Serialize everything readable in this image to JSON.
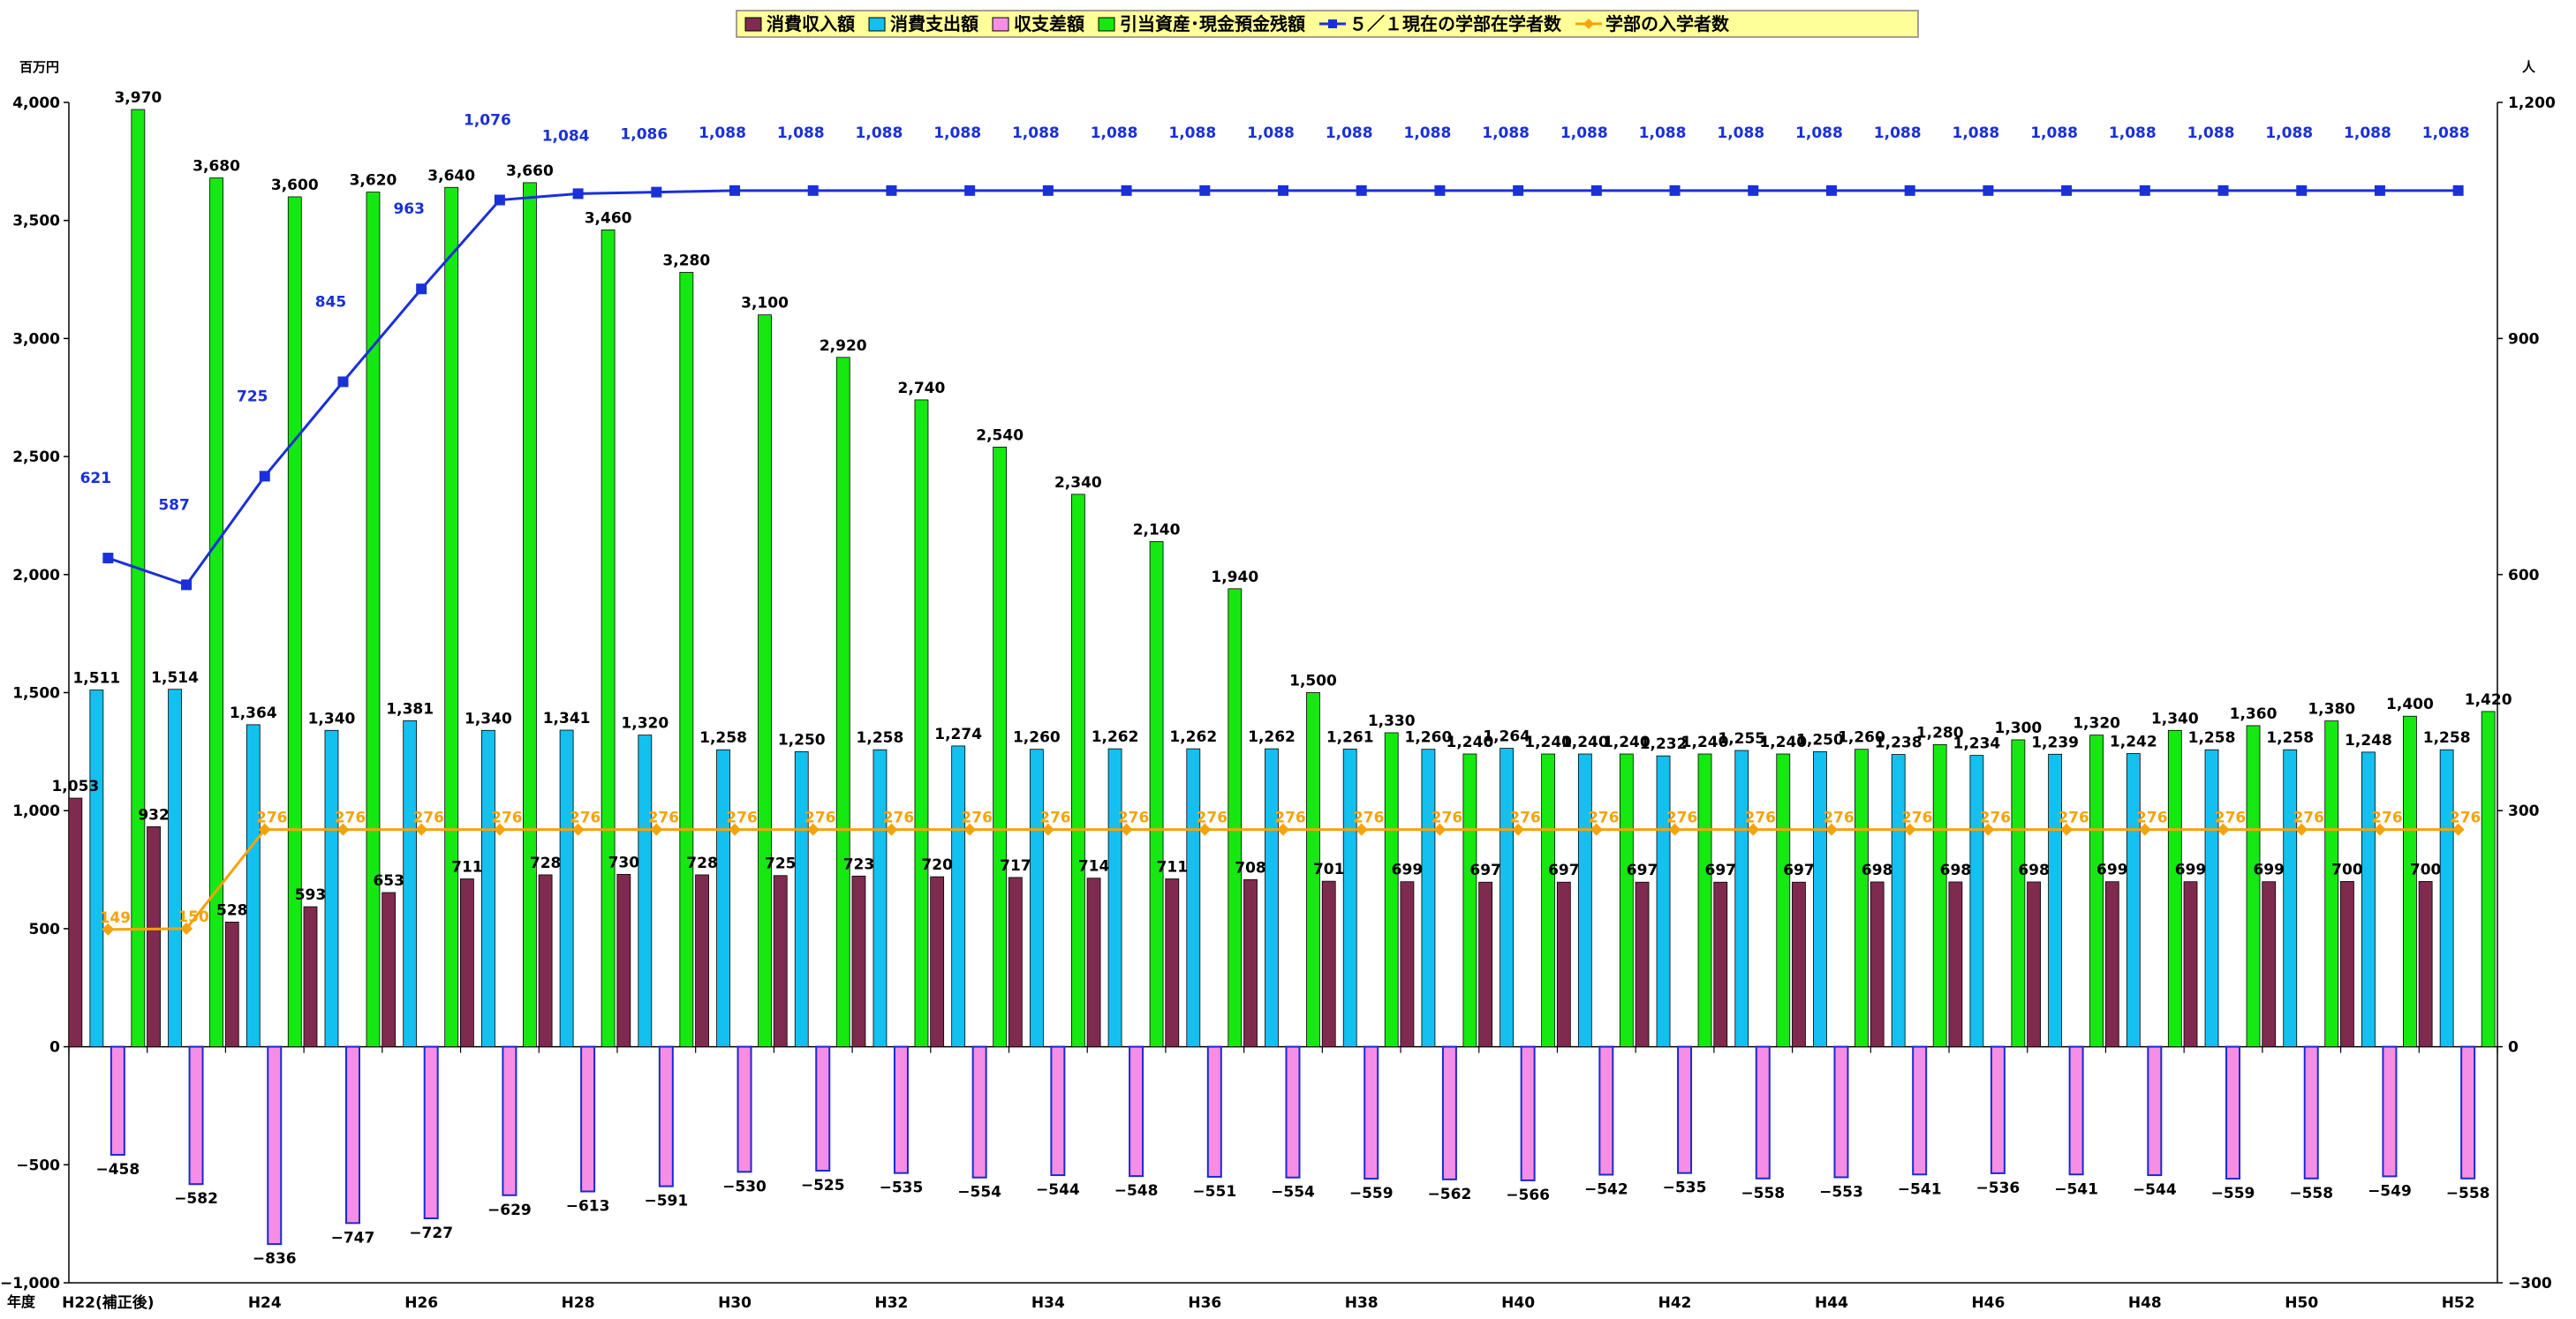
{
  "chart_data": {
    "type": "bar",
    "title": "",
    "left_axis_unit": "百万円",
    "right_axis_unit": "人",
    "x_axis_title": "年度",
    "left_ylim": [
      -1000,
      4000
    ],
    "left_ticks": [
      -1000,
      -500,
      0,
      500,
      1000,
      1500,
      2000,
      2500,
      3000,
      3500,
      4000
    ],
    "right_ylim": [
      -300,
      1200
    ],
    "right_ticks": [
      -300,
      0,
      300,
      600,
      900,
      1200
    ],
    "grid": false,
    "legend_position": "top-center",
    "categories": [
      "H22(補正後)",
      "H23",
      "H24",
      "H25",
      "H26",
      "H27",
      "H28",
      "H29",
      "H30",
      "H31",
      "H32",
      "H33",
      "H34",
      "H35",
      "H36",
      "H37",
      "H38",
      "H39",
      "H40",
      "H41",
      "H42",
      "H43",
      "H44",
      "H45",
      "H46",
      "H47",
      "H48",
      "H49",
      "H50",
      "H51",
      "H52"
    ],
    "category_labels_shown": [
      "H22(補正後)",
      "",
      "H24",
      "",
      "H26",
      "",
      "H28",
      "",
      "H30",
      "",
      "H32",
      "",
      "H34",
      "",
      "H36",
      "",
      "H38",
      "",
      "H40",
      "",
      "H42",
      "",
      "H44",
      "",
      "H46",
      "",
      "H48",
      "",
      "H50",
      "",
      "H52"
    ],
    "series": [
      {
        "name": "消費収入額",
        "kind": "bar",
        "axis": "left",
        "color": "#7f2a4f",
        "values": [
          1053,
          932,
          528,
          593,
          653,
          711,
          728,
          730,
          728,
          725,
          723,
          720,
          717,
          714,
          711,
          708,
          701,
          699,
          697,
          697,
          697,
          697,
          697,
          698,
          698,
          698,
          699,
          699,
          699,
          700,
          700
        ]
      },
      {
        "name": "消費支出額",
        "kind": "bar",
        "axis": "left",
        "color": "#13c0ef",
        "values": [
          1511,
          1514,
          1364,
          1340,
          1381,
          1340,
          1341,
          1320,
          1258,
          1250,
          1258,
          1274,
          1260,
          1262,
          1262,
          1262,
          1261,
          1260,
          1264,
          1240,
          1232,
          1255,
          1250,
          1238,
          1234,
          1239,
          1242,
          1258,
          1258,
          1248,
          1258
        ]
      },
      {
        "name": "収支差額",
        "kind": "bar",
        "axis": "left",
        "color": "#f58ee4",
        "values": [
          -458,
          -582,
          -836,
          -747,
          -727,
          -629,
          -613,
          -591,
          -530,
          -525,
          -535,
          -554,
          -544,
          -548,
          -551,
          -554,
          -559,
          -562,
          -566,
          -542,
          -535,
          -558,
          -553,
          -541,
          -536,
          -541,
          -544,
          -559,
          -558,
          -549,
          -558
        ]
      },
      {
        "name": "引当資産･現金預金残額",
        "kind": "bar",
        "axis": "left",
        "color": "#16e812",
        "values": [
          3970,
          3680,
          3600,
          3620,
          3640,
          3660,
          3460,
          3280,
          3100,
          2920,
          2740,
          2540,
          2340,
          2140,
          1940,
          1500,
          1330,
          1240,
          1240,
          1240,
          1240,
          1240,
          1260,
          1280,
          1300,
          1320,
          1340,
          1360,
          1380,
          1400,
          1420
        ]
      },
      {
        "name": "５／１現在の学部在学者数",
        "kind": "line",
        "axis": "right",
        "color": "#1a30d8",
        "values": [
          621,
          587,
          725,
          845,
          963,
          1076,
          1084,
          1086,
          1088,
          1088,
          1088,
          1088,
          1088,
          1088,
          1088,
          1088,
          1088,
          1088,
          1088,
          1088,
          1088,
          1088,
          1088,
          1088,
          1088,
          1088,
          1088,
          1088,
          1088,
          1088,
          1088
        ]
      },
      {
        "name": "学部の入学者数",
        "kind": "line",
        "axis": "right",
        "color": "#f5a30a",
        "values": [
          149,
          150,
          276,
          276,
          276,
          276,
          276,
          276,
          276,
          276,
          276,
          276,
          276,
          276,
          276,
          276,
          276,
          276,
          276,
          276,
          276,
          276,
          276,
          276,
          276,
          276,
          276,
          276,
          276,
          276,
          276
        ]
      }
    ],
    "colors": {
      "legend_bg": "#ffff99",
      "legend_border": "#808080",
      "enrolled_label": "#1a30d8",
      "admitted_label": "#f5a30a",
      "bar_outline_negative": "#1a2ad0"
    }
  }
}
